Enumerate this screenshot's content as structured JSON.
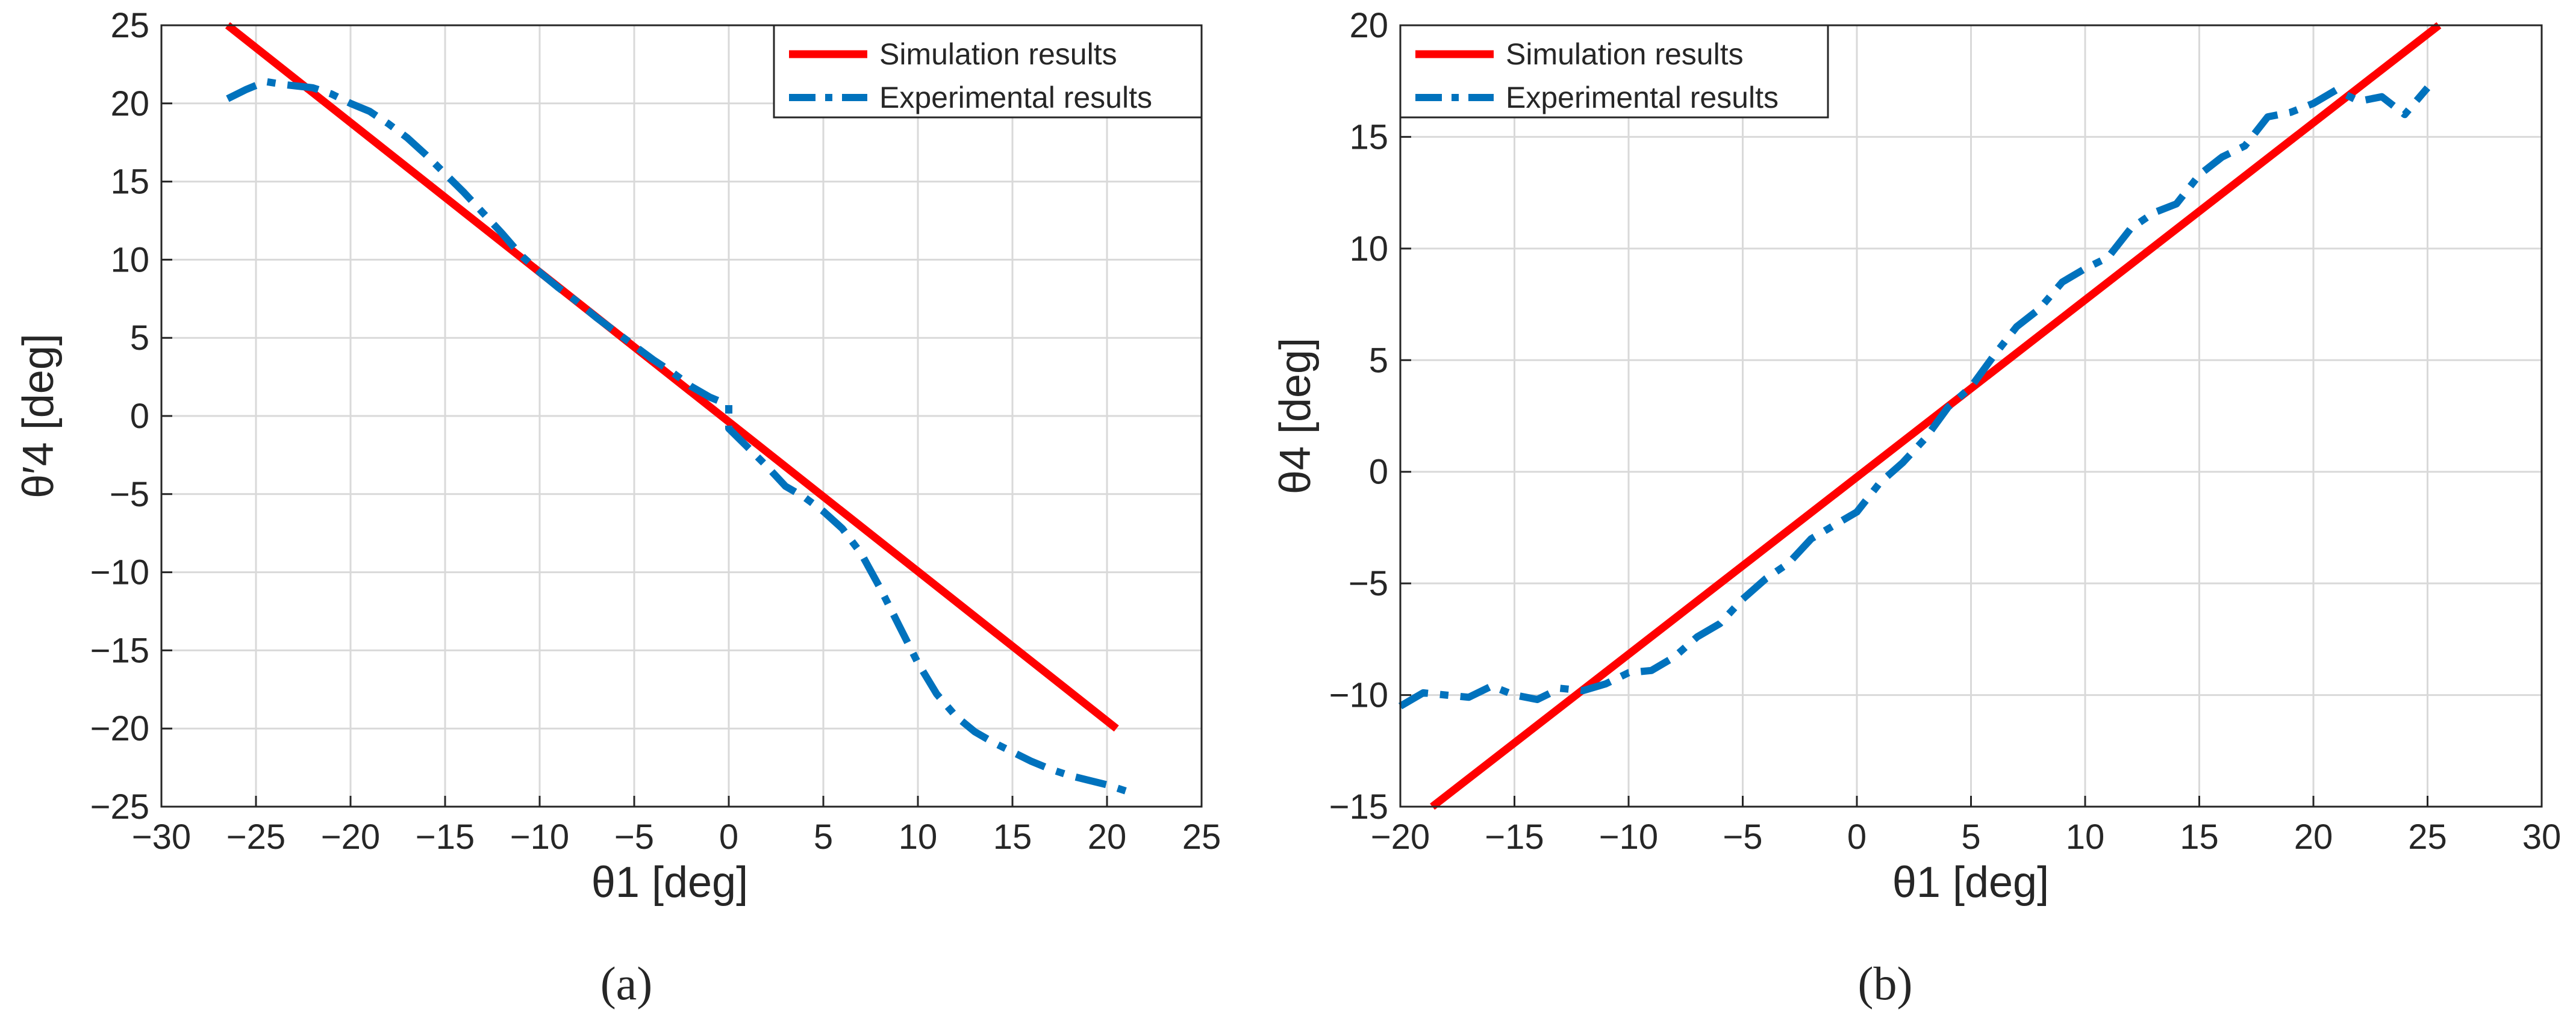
{
  "figure": {
    "captions": [
      "(a)",
      "(b)"
    ]
  },
  "colors": {
    "simulation": "#ff0000",
    "experimental": "#0072bd",
    "grid": "#d9d9d9",
    "axis": "#262626"
  },
  "chart_data": [
    {
      "type": "line",
      "caption": "(a)",
      "xlabel": "θ1 [deg]",
      "ylabel": "θ′4 [deg]",
      "xlim": [
        -30,
        25
      ],
      "ylim": [
        -25,
        25
      ],
      "xticks": [
        -30,
        -25,
        -20,
        -15,
        -10,
        -5,
        0,
        5,
        10,
        15,
        20,
        25
      ],
      "yticks": [
        -25,
        -20,
        -15,
        -10,
        -5,
        0,
        5,
        10,
        15,
        20,
        25
      ],
      "grid": true,
      "legend_position": "top-right",
      "series": [
        {
          "name": "Simulation results",
          "style": "solid",
          "x": [
            -26.5,
            20.5
          ],
          "y": [
            25,
            -20
          ]
        },
        {
          "name": "Experimental results",
          "style": "dash-dot",
          "x": [
            -26.5,
            -25.5,
            -24.5,
            -23.5,
            -22,
            -21,
            -20,
            -19,
            -18,
            -17,
            -16,
            -15,
            -14,
            -13,
            -12,
            -11,
            -10,
            -9,
            -8,
            -7,
            -6,
            -5,
            -4,
            -3,
            -2,
            -1,
            0,
            0,
            1,
            2,
            3,
            4,
            5,
            6,
            7,
            8,
            9,
            10,
            11,
            12,
            13,
            14,
            15,
            16,
            17,
            18,
            19,
            20,
            21
          ],
          "y": [
            20.3,
            20.9,
            21.4,
            21.2,
            21.0,
            20.6,
            20.0,
            19.5,
            18.7,
            17.8,
            16.7,
            15.5,
            14.3,
            13.0,
            11.7,
            10.3,
            9.2,
            8.2,
            7.3,
            6.3,
            5.4,
            4.5,
            3.6,
            2.8,
            1.9,
            1.2,
            0.7,
            -0.8,
            -2.0,
            -3.2,
            -4.5,
            -5.2,
            -6.1,
            -7.2,
            -8.8,
            -11.0,
            -13.4,
            -15.8,
            -17.8,
            -19.2,
            -20.2,
            -20.9,
            -21.5,
            -22.1,
            -22.6,
            -23.0,
            -23.3,
            -23.6,
            -24.0
          ]
        }
      ]
    },
    {
      "type": "line",
      "caption": "(b)",
      "xlabel": "θ1 [deg]",
      "ylabel": "θ4 [deg]",
      "xlim": [
        -20,
        30
      ],
      "ylim": [
        -15,
        20
      ],
      "xticks": [
        -20,
        -15,
        -10,
        -5,
        0,
        5,
        10,
        15,
        20,
        25,
        30
      ],
      "yticks": [
        -15,
        -10,
        -5,
        0,
        5,
        10,
        15,
        20
      ],
      "grid": true,
      "legend_position": "top-left",
      "series": [
        {
          "name": "Simulation results",
          "style": "solid",
          "x": [
            -18.6,
            25.5
          ],
          "y": [
            -15,
            20
          ]
        },
        {
          "name": "Experimental results",
          "style": "dash-dot",
          "x": [
            -20,
            -19,
            -18,
            -17,
            -16,
            -15,
            -14,
            -13,
            -12,
            -11,
            -10,
            -9,
            -8,
            -7,
            -6,
            -5,
            -4,
            -3,
            -2,
            -1,
            0,
            1,
            2,
            3,
            4,
            5,
            6,
            7,
            8,
            9,
            10,
            11,
            12,
            13,
            14,
            15,
            16,
            17,
            18,
            19,
            20,
            21,
            22,
            23,
            24,
            25
          ],
          "y": [
            -10.5,
            -9.9,
            -10.0,
            -10.1,
            -9.6,
            -10.0,
            -10.2,
            -9.7,
            -9.8,
            -9.5,
            -9.0,
            -8.9,
            -8.3,
            -7.4,
            -6.8,
            -5.7,
            -4.8,
            -4.1,
            -3.0,
            -2.4,
            -1.8,
            -0.5,
            0.4,
            1.5,
            2.9,
            3.8,
            5.2,
            6.5,
            7.3,
            8.5,
            9.1,
            9.6,
            10.9,
            11.6,
            12.0,
            13.3,
            14.1,
            14.6,
            15.9,
            16.1,
            16.5,
            17.1,
            16.6,
            16.8,
            16.0,
            17.2
          ]
        }
      ]
    }
  ]
}
